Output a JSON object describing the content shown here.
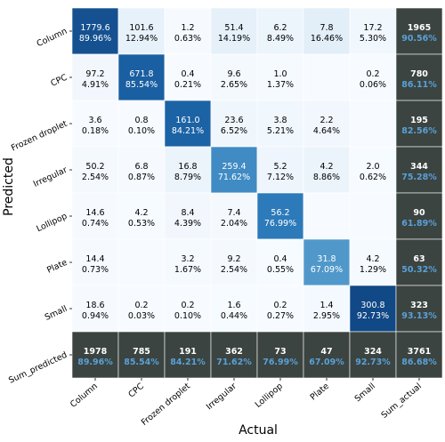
{
  "chart_data": {
    "type": "heatmap",
    "title": "",
    "xlabel": "Actual",
    "ylabel": "Predicted",
    "columns": [
      "Column",
      "CPC",
      "Frozen droplet",
      "Irregular",
      "Lollipop",
      "Plate",
      "Small",
      "Sum_actual"
    ],
    "rows": [
      "Column",
      "CPC",
      "Frozen droplet",
      "Irregular",
      "Lollipop",
      "Plate",
      "Small",
      "Sum_predicted"
    ],
    "colors": {
      "cell_low": "#f7fbff",
      "cell_high": "#08306b",
      "summary_bg": "#3b4440",
      "summary_percent": "#5aa0d8",
      "grid_line": "#ffffff"
    },
    "matrix": [
      [
        {
          "count": "1779.6",
          "pct": "89.96%",
          "v": 89.96
        },
        {
          "count": "101.6",
          "pct": "12.94%",
          "v": 12.94
        },
        {
          "count": "1.2",
          "pct": "0.63%",
          "v": 0.63
        },
        {
          "count": "51.4",
          "pct": "14.19%",
          "v": 14.19
        },
        {
          "count": "6.2",
          "pct": "8.49%",
          "v": 8.49
        },
        {
          "count": "7.8",
          "pct": "16.46%",
          "v": 16.46
        },
        {
          "count": "17.2",
          "pct": "5.30%",
          "v": 5.3
        }
      ],
      [
        {
          "count": "97.2",
          "pct": "4.91%",
          "v": 4.91
        },
        {
          "count": "671.8",
          "pct": "85.54%",
          "v": 85.54
        },
        {
          "count": "0.4",
          "pct": "0.21%",
          "v": 0.21
        },
        {
          "count": "9.6",
          "pct": "2.65%",
          "v": 2.65
        },
        {
          "count": "1.0",
          "pct": "1.37%",
          "v": 1.37
        },
        {
          "count": "",
          "pct": "",
          "v": 0
        },
        {
          "count": "0.2",
          "pct": "0.06%",
          "v": 0.06
        }
      ],
      [
        {
          "count": "3.6",
          "pct": "0.18%",
          "v": 0.18
        },
        {
          "count": "0.8",
          "pct": "0.10%",
          "v": 0.1
        },
        {
          "count": "161.0",
          "pct": "84.21%",
          "v": 84.21
        },
        {
          "count": "23.6",
          "pct": "6.52%",
          "v": 6.52
        },
        {
          "count": "3.8",
          "pct": "5.21%",
          "v": 5.21
        },
        {
          "count": "2.2",
          "pct": "4.64%",
          "v": 4.64
        },
        {
          "count": "",
          "pct": "",
          "v": 0
        }
      ],
      [
        {
          "count": "50.2",
          "pct": "2.54%",
          "v": 2.54
        },
        {
          "count": "6.8",
          "pct": "0.87%",
          "v": 0.87
        },
        {
          "count": "16.8",
          "pct": "8.79%",
          "v": 8.79
        },
        {
          "count": "259.4",
          "pct": "71.62%",
          "v": 71.62
        },
        {
          "count": "5.2",
          "pct": "7.12%",
          "v": 7.12
        },
        {
          "count": "4.2",
          "pct": "8.86%",
          "v": 8.86
        },
        {
          "count": "2.0",
          "pct": "0.62%",
          "v": 0.62
        }
      ],
      [
        {
          "count": "14.6",
          "pct": "0.74%",
          "v": 0.74
        },
        {
          "count": "4.2",
          "pct": "0.53%",
          "v": 0.53
        },
        {
          "count": "8.4",
          "pct": "4.39%",
          "v": 4.39
        },
        {
          "count": "7.4",
          "pct": "2.04%",
          "v": 2.04
        },
        {
          "count": "56.2",
          "pct": "76.99%",
          "v": 76.99
        },
        {
          "count": "",
          "pct": "",
          "v": 0
        },
        {
          "count": "",
          "pct": "",
          "v": 0
        }
      ],
      [
        {
          "count": "14.4",
          "pct": "0.73%",
          "v": 0.73
        },
        {
          "count": "",
          "pct": "",
          "v": 0
        },
        {
          "count": "3.2",
          "pct": "1.67%",
          "v": 1.67
        },
        {
          "count": "9.2",
          "pct": "2.54%",
          "v": 2.54
        },
        {
          "count": "0.4",
          "pct": "0.55%",
          "v": 0.55
        },
        {
          "count": "31.8",
          "pct": "67.09%",
          "v": 67.09
        },
        {
          "count": "4.2",
          "pct": "1.29%",
          "v": 1.29
        }
      ],
      [
        {
          "count": "18.6",
          "pct": "0.94%",
          "v": 0.94
        },
        {
          "count": "0.2",
          "pct": "0.03%",
          "v": 0.03
        },
        {
          "count": "0.2",
          "pct": "0.10%",
          "v": 0.1
        },
        {
          "count": "1.6",
          "pct": "0.44%",
          "v": 0.44
        },
        {
          "count": "0.2",
          "pct": "0.27%",
          "v": 0.27
        },
        {
          "count": "1.4",
          "pct": "2.95%",
          "v": 2.95
        },
        {
          "count": "300.8",
          "pct": "92.73%",
          "v": 92.73
        }
      ]
    ],
    "sum_actual_column": [
      {
        "count": "1965",
        "pct": "90.56%"
      },
      {
        "count": "780",
        "pct": "86.11%"
      },
      {
        "count": "195",
        "pct": "82.56%"
      },
      {
        "count": "344",
        "pct": "75.28%"
      },
      {
        "count": "90",
        "pct": "61.89%"
      },
      {
        "count": "63",
        "pct": "50.32%"
      },
      {
        "count": "323",
        "pct": "93.13%"
      }
    ],
    "sum_predicted_row": [
      {
        "count": "1978",
        "pct": "89.96%"
      },
      {
        "count": "785",
        "pct": "85.54%"
      },
      {
        "count": "191",
        "pct": "84.21%"
      },
      {
        "count": "362",
        "pct": "71.62%"
      },
      {
        "count": "73",
        "pct": "76.99%"
      },
      {
        "count": "47",
        "pct": "67.09%"
      },
      {
        "count": "324",
        "pct": "92.73%"
      },
      {
        "count": "3761",
        "pct": "86.68%"
      }
    ]
  }
}
